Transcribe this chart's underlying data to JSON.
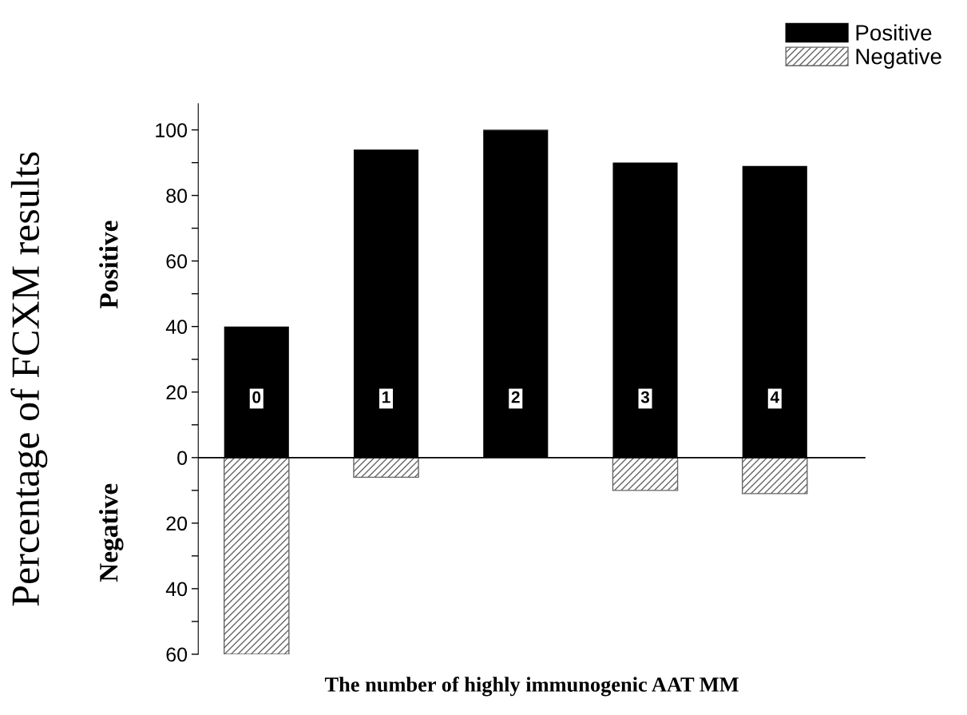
{
  "chart_data": {
    "type": "bar",
    "stacked": true,
    "categories": [
      "0",
      "1",
      "2",
      "3",
      "4"
    ],
    "series": [
      {
        "name": "Positive",
        "color": "#000000",
        "values": [
          40,
          94,
          100,
          90,
          89
        ]
      },
      {
        "name": "Negative",
        "color": "#666666",
        "values": [
          -60,
          -6,
          0,
          -10,
          -11
        ]
      }
    ],
    "ylim": [
      -60,
      108
    ],
    "yticks": [
      {
        "value": -60,
        "label": "60"
      },
      {
        "value": -50,
        "label": null
      },
      {
        "value": -40,
        "label": "40"
      },
      {
        "value": -30,
        "label": null
      },
      {
        "value": -20,
        "label": "20"
      },
      {
        "value": -10,
        "label": null
      },
      0,
      {
        "value": 10,
        "label": null
      },
      20,
      {
        "value": 30,
        "label": null
      },
      40,
      {
        "value": 50,
        "label": null
      },
      60,
      {
        "value": 70,
        "label": null
      },
      80,
      {
        "value": 90,
        "label": null
      },
      100
    ],
    "ylabel": "Percentage of FCXM results",
    "xlabel": "The number of highly immunogenic AAT MM",
    "annotations": [
      "Positive",
      "Negative"
    ],
    "legend": "top right",
    "ref_lines": [
      {
        "axis": "y",
        "value": 0,
        "color": "#000000"
      }
    ]
  }
}
